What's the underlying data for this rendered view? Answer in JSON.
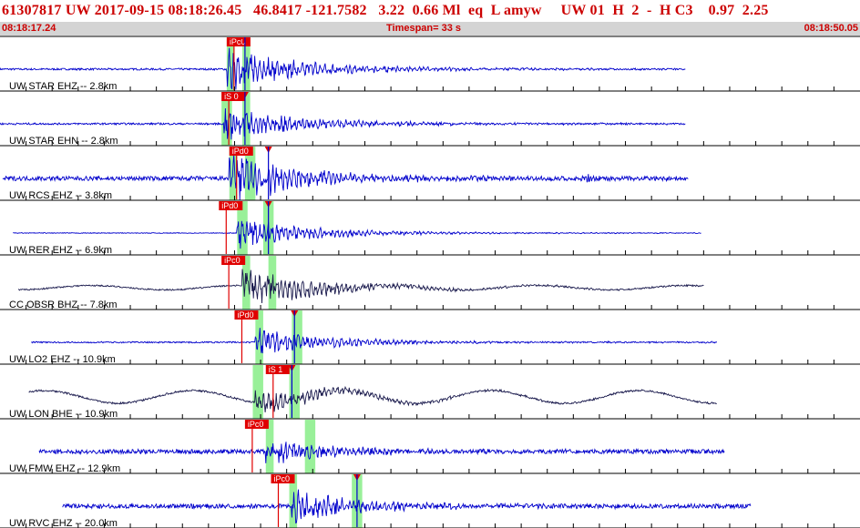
{
  "header": {
    "event_id": "61307817",
    "network": "UW",
    "datetime": "2017-09-15 08:18:26.45",
    "latitude": "46.8417",
    "longitude": "-121.7582",
    "depth": "3.22",
    "magnitude": "0.66",
    "magnitude_type": "Ml",
    "event_type": "eq",
    "location_flag": "L",
    "analyst": "amyw",
    "source": "UW 01",
    "stage": "H",
    "version": "2",
    "dash": "-",
    "review": "H C3",
    "quality": "0.97",
    "rms": "2.25",
    "start_time": "08:18:17.24",
    "timespan_label": "Timespan=",
    "timespan_value": "33 s",
    "end_time": "08:18:50.05"
  },
  "colors": {
    "trace_blue": "#0000cc",
    "trace_dark": "#1a1a4d",
    "pick_red": "#e00000",
    "phase_window_green": "#99f099",
    "grid": "#000000",
    "header_text": "#cc0000",
    "time_strip_bg": "#d4d4d4"
  },
  "traces": [
    {
      "label": "UW STAR EHZ -- 2.8km",
      "color": "blue",
      "start": 0.0,
      "end": 26.3,
      "onset": 8.7,
      "amp": 1.0,
      "noise": 0.05,
      "windows": [
        [
          8.7,
          9.0
        ],
        [
          9.3,
          9.6
        ]
      ],
      "picks": [
        {
          "text": "iPc0",
          "t": 8.7
        }
      ],
      "markers": [
        9.4
      ]
    },
    {
      "label": "UW STAR EHN -- 2.8km",
      "color": "blue",
      "start": 0.0,
      "end": 26.3,
      "onset": 8.6,
      "amp": 0.8,
      "noise": 0.05,
      "windows": [
        [
          8.5,
          8.9
        ],
        [
          9.3,
          9.6
        ]
      ],
      "picks": [
        {
          "text": "iS 0",
          "t": 8.5
        }
      ],
      "markers": [
        9.4
      ]
    },
    {
      "label": "UW RCS EHZ -- 3.8km",
      "color": "blue",
      "start": 0.1,
      "end": 26.4,
      "onset": 8.8,
      "amp": 1.1,
      "noise": 0.12,
      "windows": [
        [
          8.8,
          9.1
        ],
        [
          9.4,
          9.8
        ]
      ],
      "picks": [
        {
          "text": "iPd0",
          "t": 8.8
        }
      ],
      "markers": [
        10.3
      ],
      "extra_bursts": [
        [
          22.5,
          0.35
        ]
      ]
    },
    {
      "label": "UW RER EHZ -- 6.9km",
      "color": "blue",
      "start": 0.5,
      "end": 26.9,
      "onset": 9.1,
      "amp": 0.7,
      "noise": 0.02,
      "windows": [
        [
          9.1,
          9.5
        ],
        [
          10.1,
          10.5
        ]
      ],
      "picks": [
        {
          "text": "iPd0",
          "t": 8.4
        }
      ],
      "markers": [
        10.3
      ]
    },
    {
      "label": "CC OBSR BHZ -- 7.8km",
      "color": "dark",
      "start": 0.7,
      "end": 27.0,
      "onset": 9.3,
      "amp": 0.9,
      "noise": 0.04,
      "sway": 0.12,
      "windows": [
        [
          9.3,
          9.6
        ],
        [
          10.3,
          10.6
        ]
      ],
      "picks": [
        {
          "text": "iPc0",
          "t": 8.5
        }
      ],
      "markers": []
    },
    {
      "label": "UW LO2 EHZ -- 10.9km",
      "color": "blue",
      "start": 1.2,
      "end": 27.5,
      "onset": 9.8,
      "amp": 0.6,
      "noise": 0.04,
      "windows": [
        [
          9.8,
          10.1
        ],
        [
          11.2,
          11.6
        ]
      ],
      "picks": [
        {
          "text": "iPd0",
          "t": 9.0
        }
      ],
      "markers": [
        11.3
      ]
    },
    {
      "label": "UW LON BHE -- 10.9km",
      "color": "dark",
      "start": 1.1,
      "end": 27.5,
      "onset": 9.8,
      "amp": 0.55,
      "noise": 0.05,
      "sway": 0.35,
      "windows": [
        [
          9.7,
          10.1
        ],
        [
          11.1,
          11.5
        ]
      ],
      "picks": [
        {
          "text": "iS 1",
          "t": 10.2
        }
      ],
      "markers": [
        11.2
      ]
    },
    {
      "label": "UW FMW EHZ -- 12.9km",
      "color": "blue",
      "start": 1.5,
      "end": 27.8,
      "onset": 10.2,
      "amp": 0.55,
      "noise": 0.12,
      "windows": [
        [
          10.2,
          10.5
        ],
        [
          11.7,
          12.1
        ]
      ],
      "picks": [
        {
          "text": "iPc0",
          "t": 9.4
        }
      ],
      "markers": []
    },
    {
      "label": "UW RVC EHZ -- 20.0km",
      "color": "blue",
      "start": 2.4,
      "end": 28.8,
      "onset": 11.2,
      "amp": 0.7,
      "noise": 0.12,
      "windows": [
        [
          11.1,
          11.4
        ],
        [
          13.5,
          13.9
        ]
      ],
      "picks": [
        {
          "text": "iPc0",
          "t": 10.4
        }
      ],
      "markers": [
        13.7
      ]
    }
  ]
}
